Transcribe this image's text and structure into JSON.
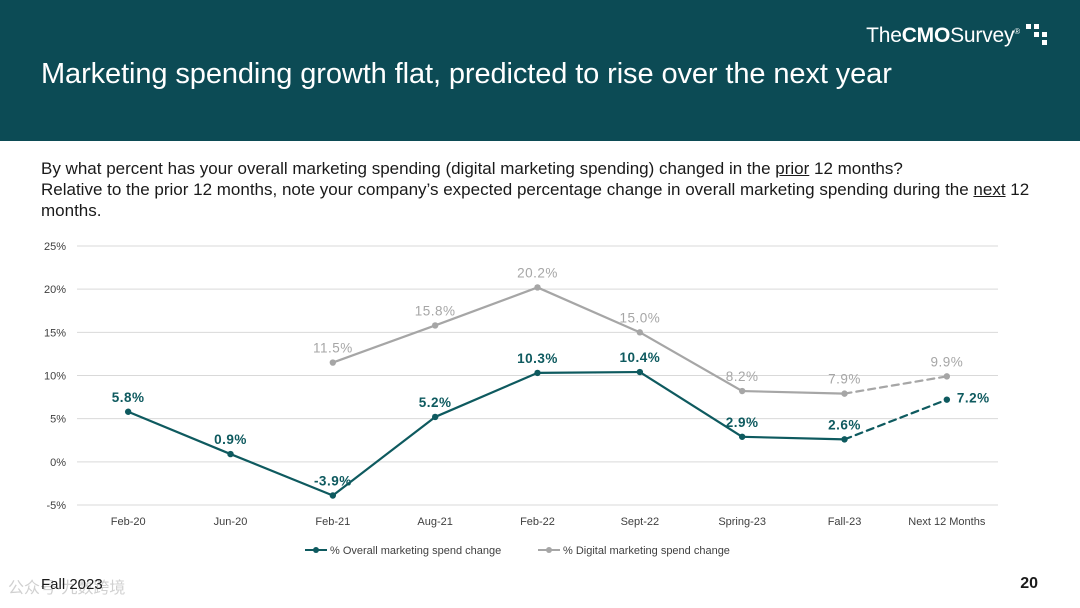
{
  "header": {
    "logo": {
      "the": "The",
      "cmo": "CMO",
      "survey": "Survey",
      "mark": "®"
    },
    "title": "Marketing spending growth flat, predicted to rise over the next year"
  },
  "question": {
    "q1_before": "By what percent has your overall marketing spending (digital marketing spending) changed in the ",
    "q1_emph": "prior",
    "q1_after": " 12 months?",
    "q2_before": "Relative to the prior 12 months, note your company’s expected percentage change in overall marketing spending during the ",
    "q2_emph": "next",
    "q2_after": " 12 months."
  },
  "chart_data": {
    "type": "line",
    "categories": [
      "Feb-20",
      "Jun-20",
      "Feb-21",
      "Aug-21",
      "Feb-22",
      "Sept-22",
      "Spring-23",
      "Fall-23",
      "Next 12 Months"
    ],
    "ylim": [
      -5,
      25
    ],
    "yticks": [
      -5,
      0,
      5,
      10,
      15,
      20,
      25
    ],
    "ytick_labels": [
      "-5%",
      "0%",
      "5%",
      "10%",
      "15%",
      "20%",
      "25%"
    ],
    "grid": true,
    "legend_position": "bottom",
    "series": [
      {
        "name": "% Overall marketing spend change",
        "color": "#0e5a5f",
        "values": [
          5.8,
          0.9,
          -3.9,
          5.2,
          10.3,
          10.4,
          2.9,
          2.6,
          7.2
        ],
        "labels": [
          "5.8%",
          "0.9%",
          "-3.9%",
          "5.2%",
          "10.3%",
          "10.4%",
          "2.9%",
          "2.6%",
          "7.2%"
        ],
        "dashed_from_index": 7
      },
      {
        "name": "% Digital marketing spend change",
        "color": "#a6a6a6",
        "values": [
          null,
          null,
          11.5,
          15.8,
          20.2,
          15.0,
          8.2,
          7.9,
          9.9
        ],
        "labels": [
          null,
          null,
          "11.5%",
          "15.8%",
          "20.2%",
          "15.0%",
          "8.2%",
          "7.9%",
          "9.9%"
        ],
        "dashed_from_index": 7
      }
    ]
  },
  "footer": {
    "left": "Fall 2023",
    "page_number": "20",
    "watermark": "公众号·九数跨境"
  },
  "colors": {
    "header_bg": "#0c4b55",
    "overall_line": "#0e5a5f",
    "digital_line": "#a6a6a6",
    "grid": "#d9d9d9"
  }
}
